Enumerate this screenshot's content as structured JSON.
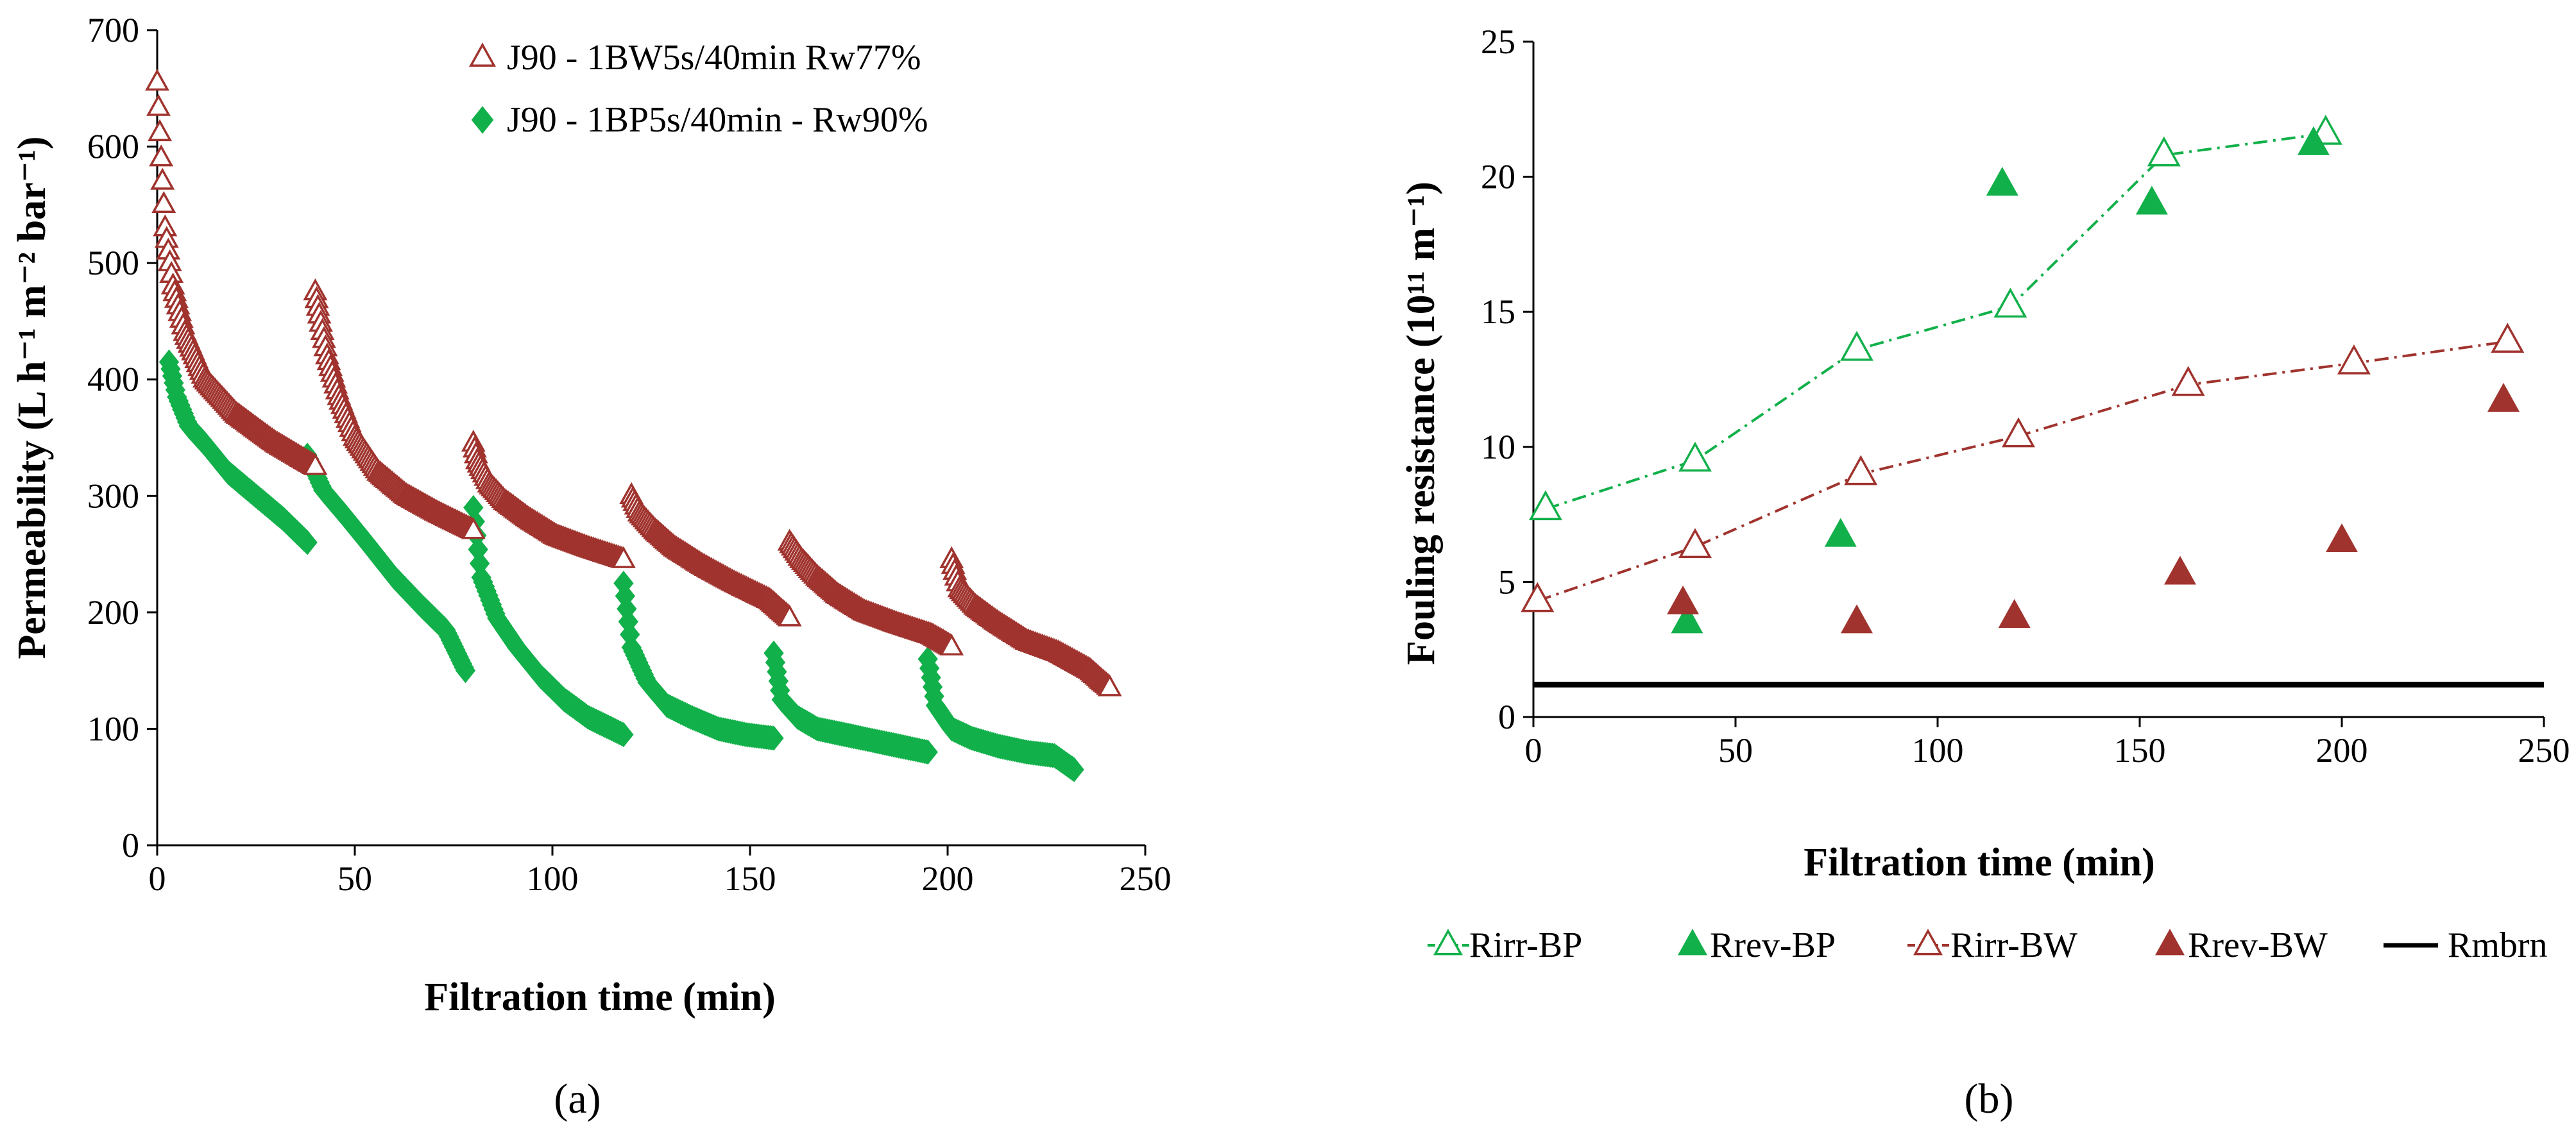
{
  "colors": {
    "brown": "#A0332E",
    "green": "#12B04A",
    "black": "#000000"
  },
  "chart_data": [
    {
      "panel": "(a)",
      "type": "scatter",
      "xlabel": "Filtration time (min)",
      "ylabel": "Permeability (L h⁻¹ m⁻² bar⁻¹)",
      "xlim": [
        0,
        250
      ],
      "ylim": [
        0,
        700
      ],
      "x_ticks": [
        0,
        50,
        100,
        150,
        200,
        250
      ],
      "y_ticks": [
        0,
        100,
        200,
        300,
        400,
        500,
        600,
        700
      ],
      "grid": false,
      "legend_position": "top-right",
      "series": [
        {
          "name": "J90 - 1BW5s/40min Rw77%",
          "marker": "open-triangle",
          "color": "#A0332E",
          "cycles": [
            {
              "x": [
                0,
                1,
                2,
                4,
                7,
                12,
                20,
                30,
                40
              ],
              "y": [
                655,
                590,
                530,
                480,
                440,
                400,
                370,
                345,
                325
              ]
            },
            {
              "x": [
                40,
                41,
                43,
                46,
                50,
                56,
                63,
                71,
                80
              ],
              "y": [
                475,
                455,
                420,
                385,
                350,
                320,
                300,
                285,
                270
              ]
            },
            {
              "x": [
                80,
                81,
                84,
                88,
                94,
                101,
                109,
                118
              ],
              "y": [
                345,
                330,
                310,
                295,
                280,
                265,
                255,
                245
              ]
            },
            {
              "x": [
                120,
                122,
                126,
                131,
                138,
                146,
                155,
                160
              ],
              "y": [
                300,
                285,
                270,
                255,
                240,
                225,
                210,
                195
              ]
            },
            {
              "x": [
                160,
                163,
                167,
                172,
                179,
                187,
                196,
                201
              ],
              "y": [
                260,
                245,
                230,
                215,
                200,
                190,
                180,
                170
              ]
            },
            {
              "x": [
                201,
                203,
                207,
                213,
                220,
                228,
                236,
                241
              ],
              "y": [
                245,
                220,
                205,
                190,
                175,
                165,
                150,
                135
              ]
            }
          ]
        },
        {
          "name": "J90 - 1BP5s/40min - Rw90%",
          "marker": "filled-diamond",
          "color": "#12B04A",
          "cycles": [
            {
              "x": [
                3,
                5,
                8,
                12,
                18,
                25,
                32,
                38
              ],
              "y": [
                415,
                385,
                360,
                345,
                320,
                300,
                280,
                260
              ]
            },
            {
              "x": [
                38,
                42,
                47,
                53,
                60,
                67,
                73,
                78
              ],
              "y": [
                335,
                305,
                285,
                260,
                230,
                205,
                185,
                150
              ]
            },
            {
              "x": [
                80,
                82,
                86,
                91,
                97,
                103,
                109,
                115,
                118
              ],
              "y": [
                290,
                230,
                195,
                170,
                145,
                125,
                110,
                100,
                95
              ]
            },
            {
              "x": [
                118,
                120,
                124,
                129,
                135,
                142,
                149,
                156
              ],
              "y": [
                225,
                170,
                140,
                120,
                110,
                100,
                95,
                92
              ]
            },
            {
              "x": [
                156,
                158,
                162,
                167,
                174,
                181,
                188,
                195
              ],
              "y": [
                165,
                125,
                110,
                100,
                95,
                90,
                85,
                80
              ]
            },
            {
              "x": [
                195,
                197,
                201,
                206,
                213,
                220,
                227,
                232
              ],
              "y": [
                160,
                120,
                100,
                92,
                85,
                80,
                77,
                65
              ]
            }
          ]
        }
      ]
    },
    {
      "panel": "(b)",
      "type": "scatter",
      "xlabel": "Filtration time (min)",
      "ylabel": "Fouling resistance (10¹¹ m⁻¹)",
      "xlim": [
        0,
        250
      ],
      "ylim": [
        0,
        25
      ],
      "x_ticks": [
        0,
        50,
        100,
        150,
        200,
        250
      ],
      "y_ticks": [
        0,
        5,
        10,
        15,
        20,
        25
      ],
      "grid": false,
      "legend_position": "bottom",
      "series": [
        {
          "name": "Rirr-BP",
          "style": "dash-dot-line-open-triangle",
          "color": "#12B04A",
          "x": [
            3,
            40,
            80,
            118,
            156,
            196
          ],
          "y": [
            7.7,
            9.5,
            13.6,
            15.2,
            20.8,
            21.6
          ]
        },
        {
          "name": "Rrev-BP",
          "style": "filled-triangle",
          "color": "#12B04A",
          "x": [
            38,
            76,
            116,
            153,
            193
          ],
          "y": [
            3.5,
            6.7,
            19.7,
            19.0,
            21.2
          ]
        },
        {
          "name": "Rirr-BW",
          "style": "dash-dot-line-open-triangle",
          "color": "#A0332E",
          "x": [
            1,
            40,
            81,
            120,
            162,
            203,
            241
          ],
          "y": [
            4.3,
            6.3,
            9.0,
            10.4,
            12.3,
            13.1,
            13.9
          ]
        },
        {
          "name": "Rrev-BW",
          "style": "filled-triangle",
          "color": "#A0332E",
          "x": [
            37,
            80,
            119,
            160,
            200,
            240
          ],
          "y": [
            4.2,
            3.5,
            3.7,
            5.3,
            6.5,
            11.7
          ]
        },
        {
          "name": "Rmbrn",
          "style": "solid-line",
          "color": "#000000",
          "x": [
            0,
            250
          ],
          "y": [
            1.2,
            1.2
          ]
        }
      ]
    }
  ]
}
